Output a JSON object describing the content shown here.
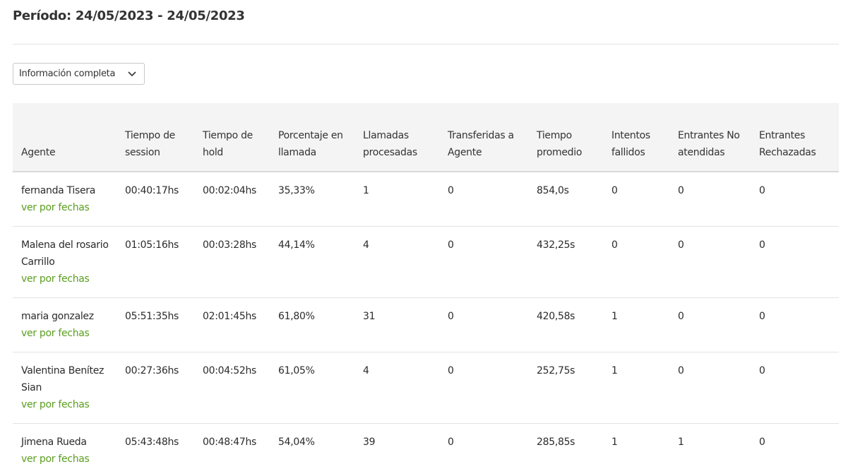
{
  "period": "Período: 24/05/2023 - 24/05/2023",
  "view_select": {
    "value": "Información completa"
  },
  "icons": {
    "select_chevron": "chevron-down-icon"
  },
  "colors": {
    "link": "#5a9e1f",
    "header_bg": "#f4f4f4"
  },
  "table": {
    "headers": {
      "agent": "Agente",
      "session_time": "Tiempo de session",
      "hold_time": "Tiempo de hold",
      "call_percentage": "Porcentaje en llamada",
      "processed_calls": "Llamadas procesadas",
      "transferred": "Transferidas a Agente",
      "average_time": "Tiempo promedio",
      "failed_attempts": "Intentos fallidos",
      "unanswered_inbound": "Entrantes No atendidas",
      "rejected_inbound": "Entrantes Rechazadas"
    },
    "link_label": "ver por fechas",
    "rows": [
      {
        "agent": "fernanda Tisera",
        "session_time": "00:40:17hs",
        "hold_time": "00:02:04hs",
        "call_percentage": "35,33%",
        "processed_calls": "1",
        "transferred": "0",
        "average_time": "854,0s",
        "failed_attempts": "0",
        "unanswered_inbound": "0",
        "rejected_inbound": "0"
      },
      {
        "agent": "Malena del rosario Carrillo",
        "session_time": "01:05:16hs",
        "hold_time": "00:03:28hs",
        "call_percentage": "44,14%",
        "processed_calls": "4",
        "transferred": "0",
        "average_time": "432,25s",
        "failed_attempts": "0",
        "unanswered_inbound": "0",
        "rejected_inbound": "0"
      },
      {
        "agent": "maria gonzalez",
        "session_time": "05:51:35hs",
        "hold_time": "02:01:45hs",
        "call_percentage": "61,80%",
        "processed_calls": "31",
        "transferred": "0",
        "average_time": "420,58s",
        "failed_attempts": "1",
        "unanswered_inbound": "0",
        "rejected_inbound": "0"
      },
      {
        "agent": "Valentina Benítez Sian",
        "session_time": "00:27:36hs",
        "hold_time": "00:04:52hs",
        "call_percentage": "61,05%",
        "processed_calls": "4",
        "transferred": "0",
        "average_time": "252,75s",
        "failed_attempts": "1",
        "unanswered_inbound": "0",
        "rejected_inbound": "0"
      },
      {
        "agent": "Jimena Rueda",
        "session_time": "05:43:48hs",
        "hold_time": "00:48:47hs",
        "call_percentage": "54,04%",
        "processed_calls": "39",
        "transferred": "0",
        "average_time": "285,85s",
        "failed_attempts": "1",
        "unanswered_inbound": "1",
        "rejected_inbound": "0"
      }
    ]
  }
}
